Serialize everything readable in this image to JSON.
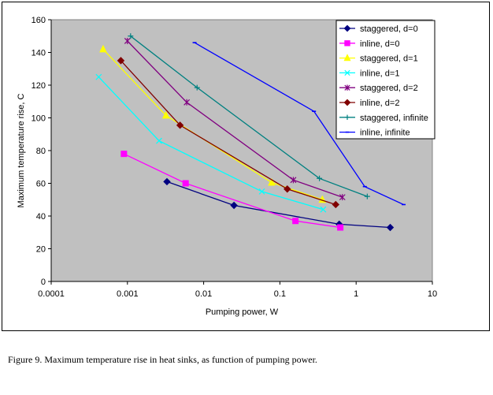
{
  "chart_data": {
    "type": "line",
    "x_scale": "log",
    "xlabel": "Pumping power, W",
    "ylabel": "Maximum temperature rise, C",
    "xlim": [
      0.0001,
      10
    ],
    "ylim": [
      0,
      160
    ],
    "x_ticks": [
      "0.0001",
      "0.001",
      "0.01",
      "0.1",
      "1",
      "10"
    ],
    "y_ticks": [
      "0",
      "20",
      "40",
      "60",
      "80",
      "100",
      "120",
      "140",
      "160"
    ],
    "plot_background": "#c0c0c0",
    "grid": false,
    "legend_position": "top-right",
    "series": [
      {
        "name": "staggered, d=0",
        "color": "#000080",
        "marker": "diamond",
        "x": [
          0.0033,
          0.025,
          0.6,
          2.8
        ],
        "y": [
          61,
          46.5,
          35,
          33
        ]
      },
      {
        "name": "inline, d=0",
        "color": "#ff00ff",
        "marker": "square",
        "x": [
          0.0009,
          0.0058,
          0.16,
          0.62
        ],
        "y": [
          78,
          60,
          37,
          33
        ]
      },
      {
        "name": "staggered, d=1",
        "color": "#ffff00",
        "marker": "triangle",
        "x": [
          0.00048,
          0.0032,
          0.078,
          0.36
        ],
        "y": [
          142,
          101.5,
          60.5,
          50
        ]
      },
      {
        "name": "inline, d=1",
        "color": "#00ffff",
        "marker": "x",
        "x": [
          0.00042,
          0.0026,
          0.058,
          0.37
        ],
        "y": [
          125,
          86,
          55,
          44
        ]
      },
      {
        "name": "staggered, d=2",
        "color": "#800080",
        "marker": "star",
        "x": [
          0.001,
          0.006,
          0.15,
          0.66
        ],
        "y": [
          147,
          109.5,
          62,
          51.5
        ]
      },
      {
        "name": "inline, d=2",
        "color": "#800000",
        "marker": "diamond",
        "x": [
          0.00082,
          0.0049,
          0.125,
          0.54
        ],
        "y": [
          135,
          95.5,
          56.5,
          47
        ]
      },
      {
        "name": "staggered, infinite",
        "color": "#008080",
        "marker": "plus",
        "x": [
          0.0011,
          0.0082,
          0.33,
          1.4
        ],
        "y": [
          150,
          118.5,
          63,
          52
        ]
      },
      {
        "name": "inline, infinite",
        "color": "#0000ff",
        "marker": "dash",
        "x": [
          0.0076,
          0.28,
          1.3,
          4.2
        ],
        "y": [
          146,
          104,
          58,
          47
        ]
      }
    ]
  },
  "caption": "Figure 9. Maximum temperature rise in heat sinks, as function of pumping power."
}
